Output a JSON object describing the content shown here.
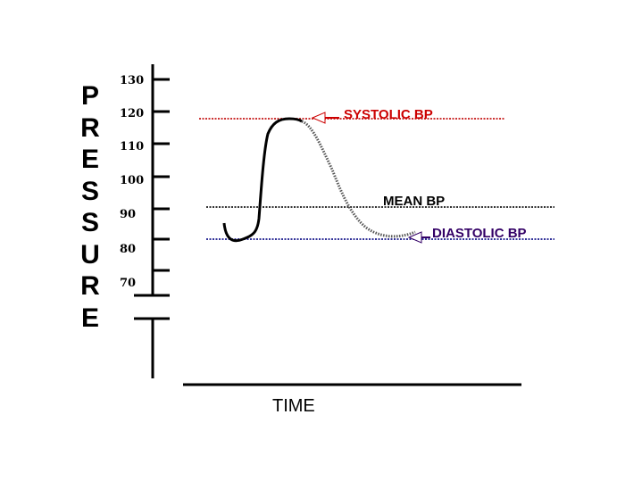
{
  "diagram": {
    "y_axis_label": "PRESSURE",
    "x_axis_label": "TIME",
    "y_ticks": [
      "130",
      "120",
      "110",
      "100",
      "90",
      "80",
      "70"
    ],
    "annotations": {
      "systolic": {
        "label": "SYSTOLIC BP",
        "color": "#cc0000"
      },
      "mean": {
        "label": "MEAN BP",
        "color": "#000000"
      },
      "diastolic": {
        "label": "DIASTOLIC BP",
        "color": "#330066"
      }
    },
    "line_colors": {
      "systolic": "#cc3333",
      "mean": "#333333",
      "diastolic": "#333399"
    }
  }
}
